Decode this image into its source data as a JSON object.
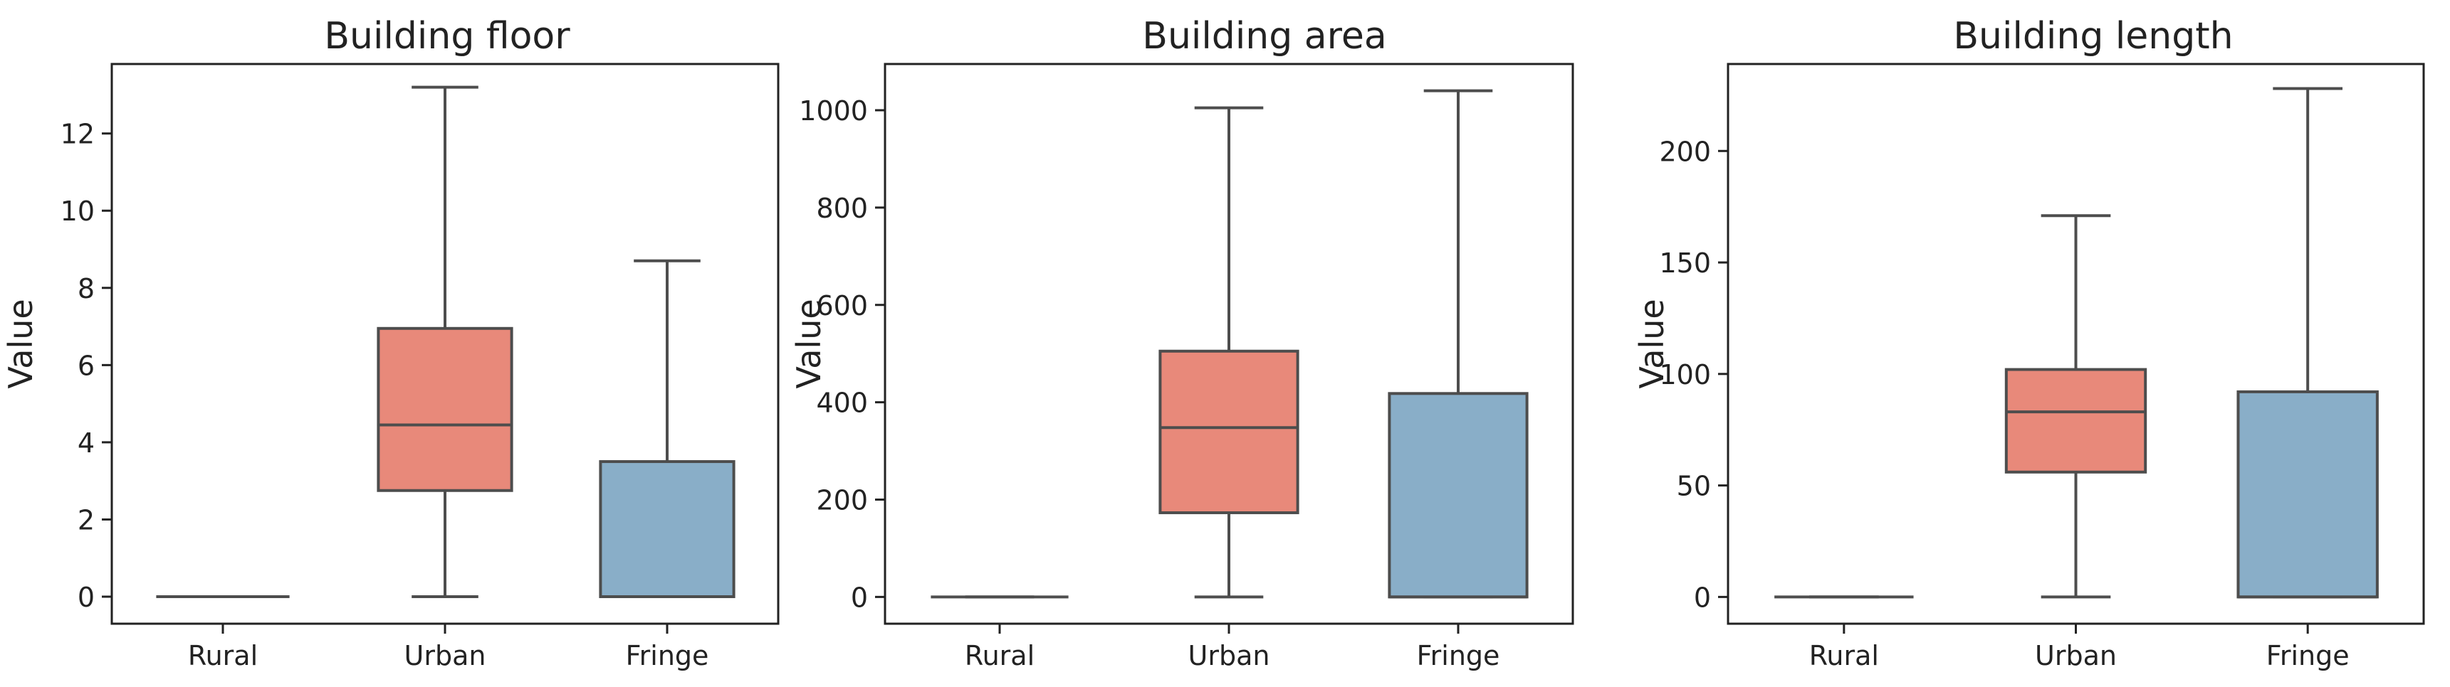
{
  "chart_data": [
    {
      "type": "box",
      "title": "Building floor",
      "xlabel": "",
      "ylabel": "Value",
      "categories": [
        "Rural",
        "Urban",
        "Fringe"
      ],
      "ylim": [
        -0.7,
        13.8
      ],
      "yticks": [
        0,
        2,
        4,
        6,
        8,
        10,
        12
      ],
      "boxes": [
        {
          "category": "Rural",
          "whisker_low": 0,
          "q1": 0,
          "median": 0,
          "q3": 0,
          "whisker_high": 0,
          "color": "#e8897a"
        },
        {
          "category": "Urban",
          "whisker_low": 0,
          "q1": 2.75,
          "median": 4.45,
          "q3": 6.95,
          "whisker_high": 13.2,
          "color": "#e8897a"
        },
        {
          "category": "Fringe",
          "whisker_low": 0,
          "q1": 0,
          "median": 0,
          "q3": 3.5,
          "whisker_high": 8.7,
          "color": "#89aec8"
        }
      ]
    },
    {
      "type": "box",
      "title": "Building area",
      "xlabel": "",
      "ylabel": "Value",
      "categories": [
        "Rural",
        "Urban",
        "Fringe"
      ],
      "ylim": [
        -55,
        1095
      ],
      "yticks": [
        0,
        200,
        400,
        600,
        800,
        1000
      ],
      "boxes": [
        {
          "category": "Rural",
          "whisker_low": 0,
          "q1": 0,
          "median": 0,
          "q3": 0,
          "whisker_high": 0,
          "color": "#e8897a"
        },
        {
          "category": "Urban",
          "whisker_low": 0,
          "q1": 173,
          "median": 348,
          "q3": 505,
          "whisker_high": 1005,
          "color": "#e8897a"
        },
        {
          "category": "Fringe",
          "whisker_low": 0,
          "q1": 0,
          "median": 0,
          "q3": 418,
          "whisker_high": 1040,
          "color": "#89aec8"
        }
      ]
    },
    {
      "type": "box",
      "title": "Building length",
      "xlabel": "",
      "ylabel": "Value",
      "categories": [
        "Rural",
        "Urban",
        "Fringe"
      ],
      "ylim": [
        -12,
        239
      ],
      "yticks": [
        0,
        50,
        100,
        150,
        200
      ],
      "boxes": [
        {
          "category": "Rural",
          "whisker_low": 0,
          "q1": 0,
          "median": 0,
          "q3": 0,
          "whisker_high": 0,
          "color": "#e8897a"
        },
        {
          "category": "Urban",
          "whisker_low": 0,
          "q1": 56,
          "median": 83,
          "q3": 102,
          "whisker_high": 171,
          "color": "#e8897a"
        },
        {
          "category": "Fringe",
          "whisker_low": 0,
          "q1": 0,
          "median": 0,
          "q3": 92,
          "whisker_high": 228,
          "color": "#89aec8"
        }
      ]
    }
  ]
}
